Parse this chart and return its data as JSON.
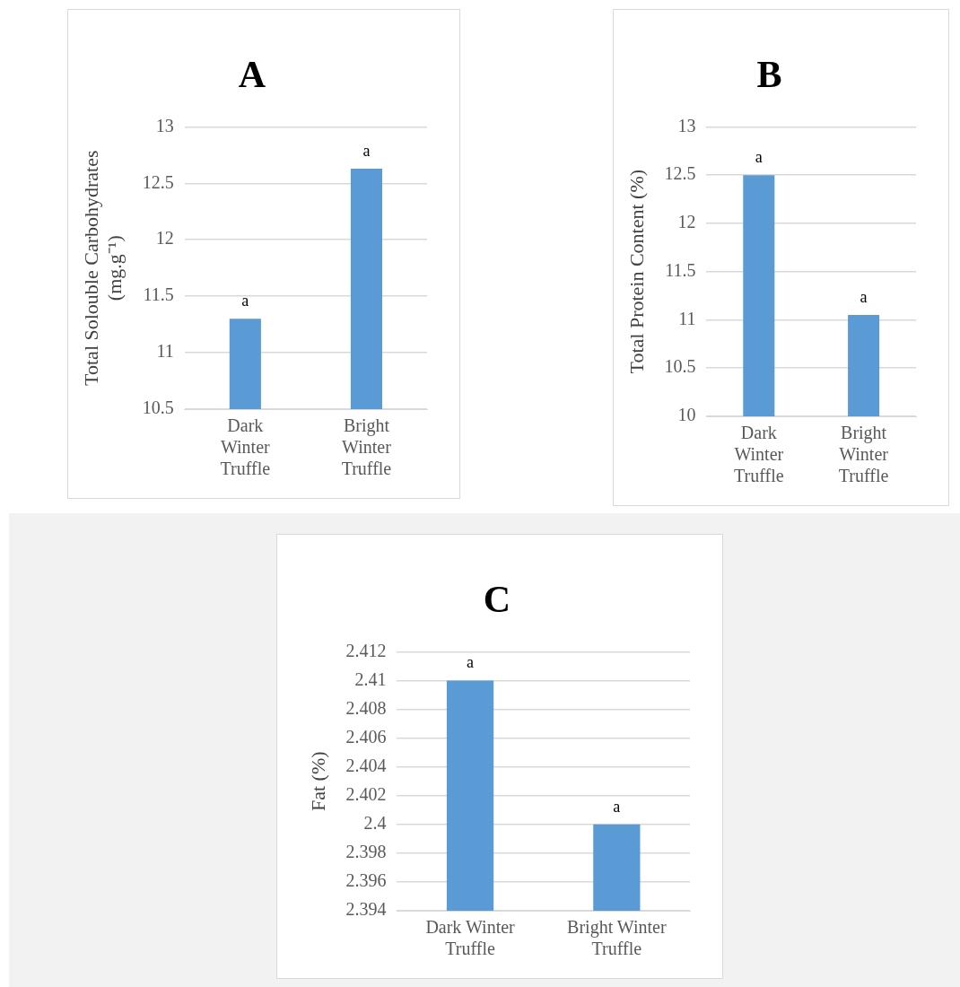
{
  "chart_data": [
    {
      "type": "bar",
      "title": "A",
      "ylabel": "Total Solouble Carbohydrates (mg.g⁻¹)",
      "categories": [
        "Dark Winter Truffle",
        "Bright Winter Truffle"
      ],
      "values": [
        11.3,
        12.63
      ],
      "color": "#5b9bd5",
      "ylim": [
        10.5,
        13
      ],
      "yticks": [
        10.5,
        11,
        11.5,
        12,
        12.5,
        13
      ],
      "grid": "y",
      "annotations": [
        {
          "text": "a",
          "x": "Dark Winter Truffle",
          "y": 11.3
        },
        {
          "text": "a",
          "x": "Bright Winter Truffle",
          "y": 12.63
        }
      ]
    },
    {
      "type": "bar",
      "title": "B",
      "ylabel": "Total Protein Content (%)",
      "categories": [
        "Dark Winter Truffle",
        "Bright Winter Truffle"
      ],
      "values": [
        12.5,
        11.05
      ],
      "color": "#5b9bd5",
      "ylim": [
        10,
        13
      ],
      "yticks": [
        10,
        10.5,
        11,
        11.5,
        12,
        12.5,
        13
      ],
      "grid": "y",
      "annotations": [
        {
          "text": "a",
          "x": "Dark Winter Truffle",
          "y": 12.5
        },
        {
          "text": "a",
          "x": "Bright Winter Truffle",
          "y": 11.05
        }
      ]
    },
    {
      "type": "bar",
      "title": "C",
      "ylabel": "Fat (%)",
      "categories": [
        "Dark Winter Truffle",
        "Bright Winter Truffle"
      ],
      "values": [
        2.41,
        2.4
      ],
      "color": "#5b9bd5",
      "ylim": [
        2.394,
        2.412
      ],
      "yticks": [
        2.394,
        2.396,
        2.398,
        2.4,
        2.402,
        2.404,
        2.406,
        2.408,
        2.41,
        2.412
      ],
      "grid": "y",
      "annotations": [
        {
          "text": "a",
          "x": "Dark Winter Truffle",
          "y": 2.41
        },
        {
          "text": "a",
          "x": "Bright Winter Truffle",
          "y": 2.4
        }
      ]
    }
  ]
}
